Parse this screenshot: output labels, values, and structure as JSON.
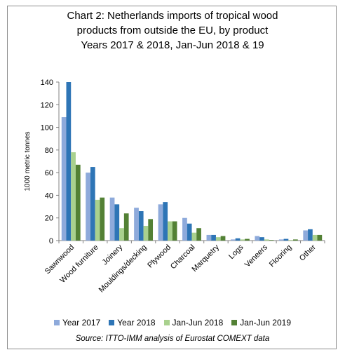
{
  "chart_data": {
    "type": "bar",
    "title_lines": [
      "Chart 2: Netherlands imports of tropical wood",
      "products from outside the EU, by product",
      "Years 2017 & 2018, Jan-Jun 2018 & 19"
    ],
    "ylabel": "1000 metric tonnes",
    "xlabel": "",
    "ylim": [
      0,
      140
    ],
    "yticks": [
      0,
      20,
      40,
      60,
      80,
      100,
      120,
      140
    ],
    "grid": false,
    "legend_position": "bottom",
    "categories": [
      "Sawnwood",
      "Wood furniture",
      "Joinery",
      "Mouldings/decking",
      "Plywood",
      "Charcoal",
      "Marquetry",
      "Logs",
      "Veneers",
      "Flooring",
      "Other"
    ],
    "series": [
      {
        "name": "Year 2017",
        "color": "#8eaadb",
        "values": [
          109,
          60,
          38,
          29,
          32,
          20,
          5,
          1,
          4,
          1,
          9
        ]
      },
      {
        "name": "Year 2018",
        "color": "#2e75b6",
        "values": [
          140,
          65,
          32,
          26,
          34,
          15,
          5,
          2,
          3,
          1.5,
          10
        ]
      },
      {
        "name": "Jan-Jun 2018",
        "color": "#a9d18e",
        "values": [
          78,
          36,
          11,
          13,
          17,
          7,
          3,
          1,
          1,
          0.5,
          5
        ]
      },
      {
        "name": "Jan-Jun 2019",
        "color": "#538135",
        "values": [
          67,
          38,
          24,
          19,
          17,
          11,
          4,
          1.5,
          0.5,
          1,
          5
        ]
      }
    ],
    "source": "Source: ITTO-IMM analysis of Eurostat COMEXT data"
  }
}
